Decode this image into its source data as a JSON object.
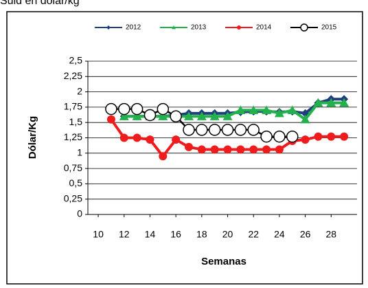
{
  "header": {
    "title": "Suld en dólar/kg"
  },
  "chart_data": {
    "type": "line",
    "x": [
      11,
      12,
      13,
      14,
      15,
      16,
      17,
      18,
      19,
      20,
      21,
      22,
      23,
      24,
      25,
      26,
      27,
      28,
      29
    ],
    "series": [
      {
        "name": "2012",
        "color": "#1f3f7a",
        "marker": "diamond",
        "values": [
          null,
          1.6,
          1.6,
          1.6,
          1.6,
          1.62,
          1.65,
          1.65,
          1.65,
          1.65,
          1.67,
          1.68,
          1.68,
          1.67,
          1.68,
          1.65,
          1.82,
          1.88,
          1.88
        ]
      },
      {
        "name": "2013",
        "color": "#22b14c",
        "marker": "triangle",
        "values": [
          null,
          1.6,
          1.6,
          1.6,
          1.6,
          1.6,
          1.6,
          1.6,
          1.6,
          1.6,
          1.7,
          1.7,
          1.7,
          1.65,
          1.7,
          1.55,
          1.82,
          1.82,
          1.82
        ]
      },
      {
        "name": "2014",
        "color": "#ee1c1c",
        "marker": "circle",
        "values": [
          1.55,
          1.25,
          1.25,
          1.22,
          0.95,
          1.22,
          1.1,
          1.06,
          1.06,
          1.06,
          1.06,
          1.06,
          1.06,
          1.06,
          1.2,
          1.22,
          1.27,
          1.27,
          1.27
        ]
      },
      {
        "name": "2015",
        "color": "#000000",
        "marker": "open-circle",
        "values": [
          1.72,
          1.72,
          1.72,
          1.62,
          1.72,
          1.6,
          1.38,
          1.38,
          1.38,
          1.38,
          1.38,
          1.38,
          1.27,
          1.27,
          1.27,
          null,
          null,
          null,
          null
        ]
      }
    ],
    "xlabel": "Semanas",
    "ylabel": "Dólar/Kg",
    "xlim": [
      9.2,
      30
    ],
    "xticks": [
      10,
      12,
      14,
      16,
      18,
      20,
      22,
      24,
      26,
      28
    ],
    "ylim": [
      0,
      2.5
    ],
    "yticks": [
      0,
      {
        "value": 0.25,
        "label": "0,25"
      },
      {
        "value": 0.5,
        "label": "0,5"
      },
      {
        "value": 0.75,
        "label": "0,75"
      },
      1,
      {
        "value": 1.25,
        "label": "1,25"
      },
      {
        "value": 1.5,
        "label": "1,5"
      },
      {
        "value": 1.75,
        "label": "1,75"
      },
      2,
      {
        "value": 2.25,
        "label": "2,25"
      },
      {
        "value": 2.5,
        "label": "2,5"
      }
    ],
    "grid": true,
    "legend": "top"
  }
}
